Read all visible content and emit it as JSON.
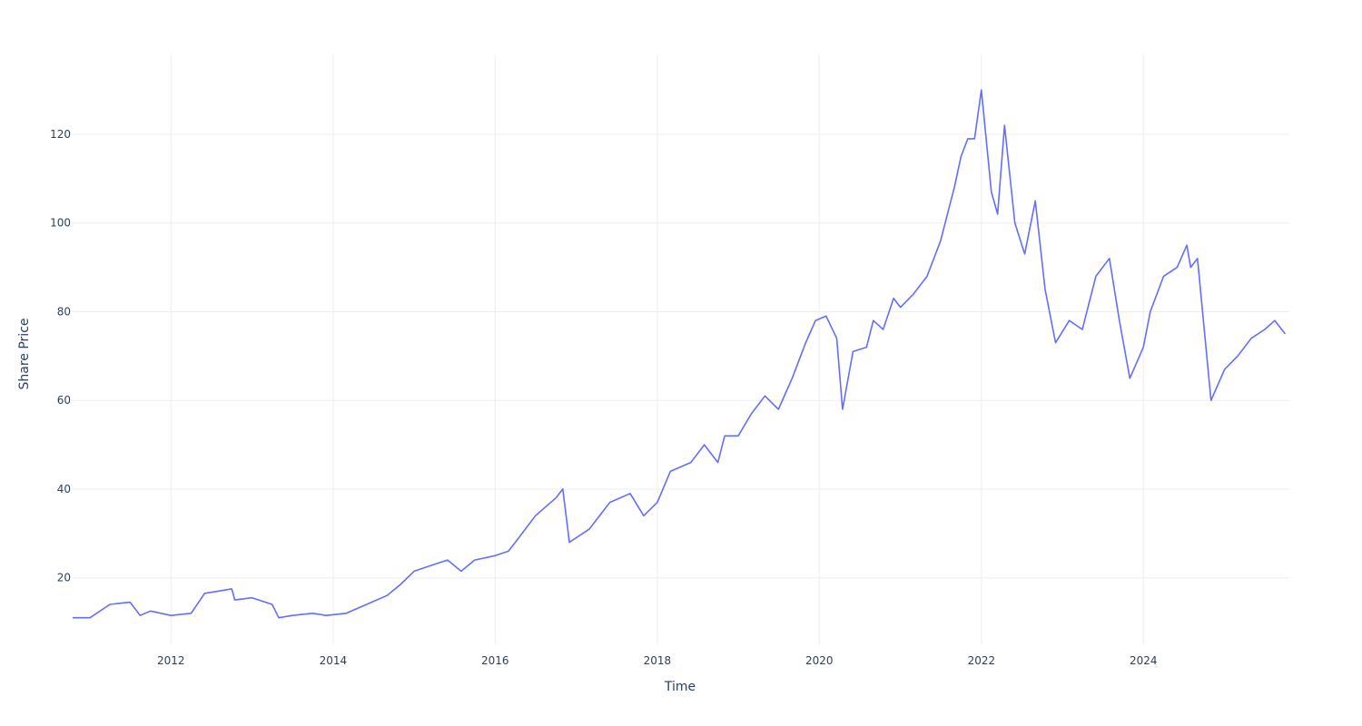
{
  "chart_data": {
    "type": "line",
    "title": "",
    "xlabel": "Time",
    "ylabel": "Share Price",
    "x_tick_labels": [
      "2012",
      "2014",
      "2016",
      "2018",
      "2020",
      "2022",
      "2024"
    ],
    "y_tick_labels": [
      "20",
      "40",
      "60",
      "80",
      "100",
      "120"
    ],
    "xlim": [
      "2010-10-15",
      "2025-10-20"
    ],
    "ylim": [
      5,
      138
    ],
    "grid": true,
    "legend": "none",
    "colors": {
      "series": "#636efa",
      "grid": "#ebedf3",
      "text": "#2a3f5f"
    },
    "series": [
      {
        "x": [
          "2010-10-15",
          "2011-01-01",
          "2011-04-01",
          "2011-07-01",
          "2011-08-15",
          "2011-10-01",
          "2012-01-01",
          "2012-04-01",
          "2012-06-01",
          "2012-08-01",
          "2012-10-01",
          "2012-10-15",
          "2013-01-01",
          "2013-04-01",
          "2013-05-01",
          "2013-07-01",
          "2013-10-01",
          "2013-12-01",
          "2014-03-01",
          "2014-06-01",
          "2014-09-01",
          "2014-11-01",
          "2015-01-01",
          "2015-03-01",
          "2015-06-01",
          "2015-08-01",
          "2015-10-01",
          "2016-01-01",
          "2016-03-01",
          "2016-04-01",
          "2016-07-01",
          "2016-10-01",
          "2016-11-01",
          "2016-12-01",
          "2017-03-01",
          "2017-06-01",
          "2017-09-01",
          "2017-11-01",
          "2018-01-01",
          "2018-03-01",
          "2018-06-01",
          "2018-08-01",
          "2018-10-01",
          "2018-11-01",
          "2019-01-01",
          "2019-03-01",
          "2019-05-01",
          "2019-07-01",
          "2019-09-01",
          "2019-11-01",
          "2019-12-15",
          "2020-02-01",
          "2020-03-20",
          "2020-04-15",
          "2020-06-01",
          "2020-08-01",
          "2020-09-01",
          "2020-10-15",
          "2020-12-01",
          "2021-01-01",
          "2021-03-01",
          "2021-05-01",
          "2021-07-01",
          "2021-09-01",
          "2021-10-01",
          "2021-11-01",
          "2021-12-01",
          "2022-01-01",
          "2022-02-15",
          "2022-03-15",
          "2022-04-15",
          "2022-06-01",
          "2022-07-15",
          "2022-09-01",
          "2022-10-15",
          "2022-12-01",
          "2023-02-01",
          "2023-04-01",
          "2023-06-01",
          "2023-08-01",
          "2023-09-15",
          "2023-11-01",
          "2024-01-01",
          "2024-02-01",
          "2024-04-01",
          "2024-06-01",
          "2024-07-15",
          "2024-08-01",
          "2024-09-01",
          "2024-11-01",
          "2025-01-01",
          "2025-03-01",
          "2025-05-01",
          "2025-07-01",
          "2025-08-15",
          "2025-10-01"
        ],
        "y": [
          11,
          11,
          14,
          14.5,
          11.5,
          12.5,
          11.5,
          12,
          16.5,
          17,
          17.5,
          15,
          15.5,
          14,
          11,
          11.5,
          12,
          11.5,
          12,
          14,
          16,
          18.5,
          21.5,
          22.5,
          24,
          21.5,
          24,
          25,
          26,
          28,
          34,
          38,
          40,
          28,
          31,
          37,
          39,
          34,
          37,
          44,
          46,
          50,
          46,
          52,
          52,
          57,
          61,
          58,
          65,
          73,
          78,
          79,
          74,
          58,
          71,
          72,
          78,
          76,
          83,
          81,
          84,
          88,
          96,
          108,
          115,
          119,
          119,
          130,
          107,
          102,
          122,
          100,
          93,
          105,
          85,
          73,
          78,
          76,
          88,
          92,
          78,
          65,
          72,
          80,
          88,
          90,
          95,
          90,
          92,
          60,
          67,
          70,
          74,
          76,
          78,
          75
        ]
      }
    ]
  }
}
